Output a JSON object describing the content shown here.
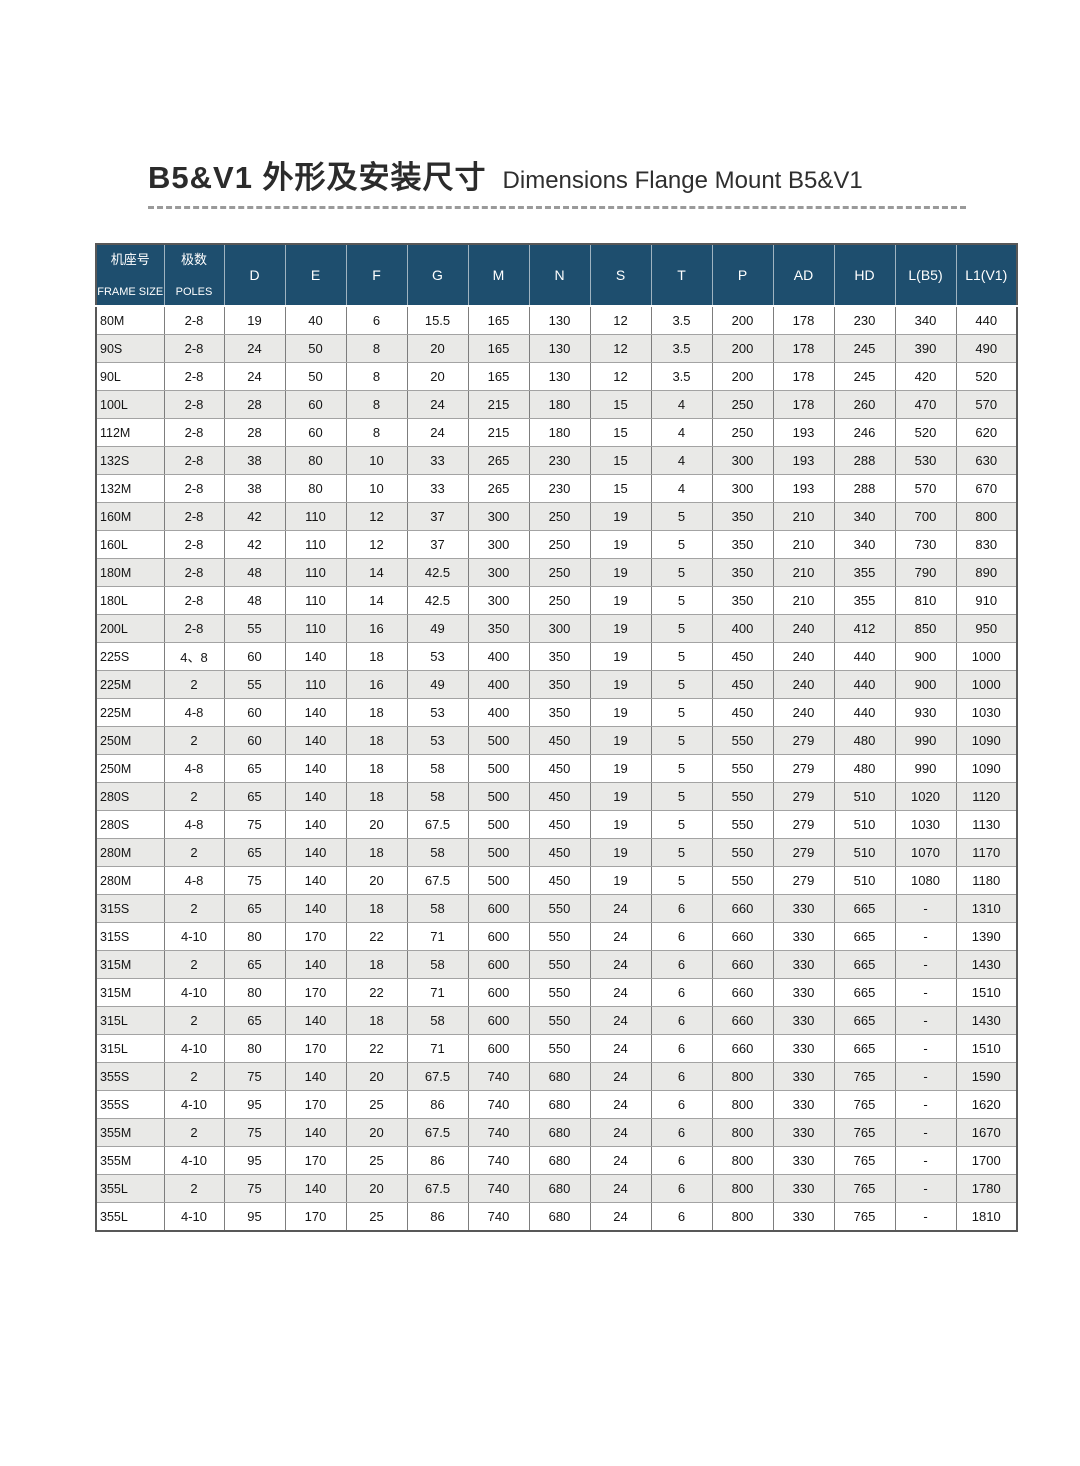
{
  "page": {
    "title_zh": "B5&V1 外形及安装尺寸",
    "title_en": "Dimensions Flange Mount B5&V1"
  },
  "colors": {
    "header_bg": "#1e4e6e",
    "header_text": "#ffffff",
    "stripe": "#e9e9e7"
  },
  "table": {
    "frame_header": {
      "zh": "机座号",
      "en": "FRAME SIZE"
    },
    "poles_header": {
      "zh": "极数",
      "en": "POLES"
    },
    "dim_headers": [
      "D",
      "E",
      "F",
      "G",
      "M",
      "N",
      "S",
      "T",
      "P",
      "AD",
      "HD",
      "L(B5)",
      "L1(V1)"
    ],
    "rows": [
      [
        "80M",
        "2-8",
        "19",
        "40",
        "6",
        "15.5",
        "165",
        "130",
        "12",
        "3.5",
        "200",
        "178",
        "230",
        "340",
        "440"
      ],
      [
        "90S",
        "2-8",
        "24",
        "50",
        "8",
        "20",
        "165",
        "130",
        "12",
        "3.5",
        "200",
        "178",
        "245",
        "390",
        "490"
      ],
      [
        "90L",
        "2-8",
        "24",
        "50",
        "8",
        "20",
        "165",
        "130",
        "12",
        "3.5",
        "200",
        "178",
        "245",
        "420",
        "520"
      ],
      [
        "100L",
        "2-8",
        "28",
        "60",
        "8",
        "24",
        "215",
        "180",
        "15",
        "4",
        "250",
        "178",
        "260",
        "470",
        "570"
      ],
      [
        "112M",
        "2-8",
        "28",
        "60",
        "8",
        "24",
        "215",
        "180",
        "15",
        "4",
        "250",
        "193",
        "246",
        "520",
        "620"
      ],
      [
        "132S",
        "2-8",
        "38",
        "80",
        "10",
        "33",
        "265",
        "230",
        "15",
        "4",
        "300",
        "193",
        "288",
        "530",
        "630"
      ],
      [
        "132M",
        "2-8",
        "38",
        "80",
        "10",
        "33",
        "265",
        "230",
        "15",
        "4",
        "300",
        "193",
        "288",
        "570",
        "670"
      ],
      [
        "160M",
        "2-8",
        "42",
        "110",
        "12",
        "37",
        "300",
        "250",
        "19",
        "5",
        "350",
        "210",
        "340",
        "700",
        "800"
      ],
      [
        "160L",
        "2-8",
        "42",
        "110",
        "12",
        "37",
        "300",
        "250",
        "19",
        "5",
        "350",
        "210",
        "340",
        "730",
        "830"
      ],
      [
        "180M",
        "2-8",
        "48",
        "110",
        "14",
        "42.5",
        "300",
        "250",
        "19",
        "5",
        "350",
        "210",
        "355",
        "790",
        "890"
      ],
      [
        "180L",
        "2-8",
        "48",
        "110",
        "14",
        "42.5",
        "300",
        "250",
        "19",
        "5",
        "350",
        "210",
        "355",
        "810",
        "910"
      ],
      [
        "200L",
        "2-8",
        "55",
        "110",
        "16",
        "49",
        "350",
        "300",
        "19",
        "5",
        "400",
        "240",
        "412",
        "850",
        "950"
      ],
      [
        "225S",
        "4、8",
        "60",
        "140",
        "18",
        "53",
        "400",
        "350",
        "19",
        "5",
        "450",
        "240",
        "440",
        "900",
        "1000"
      ],
      [
        "225M",
        "2",
        "55",
        "110",
        "16",
        "49",
        "400",
        "350",
        "19",
        "5",
        "450",
        "240",
        "440",
        "900",
        "1000"
      ],
      [
        "225M",
        "4-8",
        "60",
        "140",
        "18",
        "53",
        "400",
        "350",
        "19",
        "5",
        "450",
        "240",
        "440",
        "930",
        "1030"
      ],
      [
        "250M",
        "2",
        "60",
        "140",
        "18",
        "53",
        "500",
        "450",
        "19",
        "5",
        "550",
        "279",
        "480",
        "990",
        "1090"
      ],
      [
        "250M",
        "4-8",
        "65",
        "140",
        "18",
        "58",
        "500",
        "450",
        "19",
        "5",
        "550",
        "279",
        "480",
        "990",
        "1090"
      ],
      [
        "280S",
        "2",
        "65",
        "140",
        "18",
        "58",
        "500",
        "450",
        "19",
        "5",
        "550",
        "279",
        "510",
        "1020",
        "1120"
      ],
      [
        "280S",
        "4-8",
        "75",
        "140",
        "20",
        "67.5",
        "500",
        "450",
        "19",
        "5",
        "550",
        "279",
        "510",
        "1030",
        "1130"
      ],
      [
        "280M",
        "2",
        "65",
        "140",
        "18",
        "58",
        "500",
        "450",
        "19",
        "5",
        "550",
        "279",
        "510",
        "1070",
        "1170"
      ],
      [
        "280M",
        "4-8",
        "75",
        "140",
        "20",
        "67.5",
        "500",
        "450",
        "19",
        "5",
        "550",
        "279",
        "510",
        "1080",
        "1180"
      ],
      [
        "315S",
        "2",
        "65",
        "140",
        "18",
        "58",
        "600",
        "550",
        "24",
        "6",
        "660",
        "330",
        "665",
        "-",
        "1310"
      ],
      [
        "315S",
        "4-10",
        "80",
        "170",
        "22",
        "71",
        "600",
        "550",
        "24",
        "6",
        "660",
        "330",
        "665",
        "-",
        "1390"
      ],
      [
        "315M",
        "2",
        "65",
        "140",
        "18",
        "58",
        "600",
        "550",
        "24",
        "6",
        "660",
        "330",
        "665",
        "-",
        "1430"
      ],
      [
        "315M",
        "4-10",
        "80",
        "170",
        "22",
        "71",
        "600",
        "550",
        "24",
        "6",
        "660",
        "330",
        "665",
        "-",
        "1510"
      ],
      [
        "315L",
        "2",
        "65",
        "140",
        "18",
        "58",
        "600",
        "550",
        "24",
        "6",
        "660",
        "330",
        "665",
        "-",
        "1430"
      ],
      [
        "315L",
        "4-10",
        "80",
        "170",
        "22",
        "71",
        "600",
        "550",
        "24",
        "6",
        "660",
        "330",
        "665",
        "-",
        "1510"
      ],
      [
        "355S",
        "2",
        "75",
        "140",
        "20",
        "67.5",
        "740",
        "680",
        "24",
        "6",
        "800",
        "330",
        "765",
        "-",
        "1590"
      ],
      [
        "355S",
        "4-10",
        "95",
        "170",
        "25",
        "86",
        "740",
        "680",
        "24",
        "6",
        "800",
        "330",
        "765",
        "-",
        "1620"
      ],
      [
        "355M",
        "2",
        "75",
        "140",
        "20",
        "67.5",
        "740",
        "680",
        "24",
        "6",
        "800",
        "330",
        "765",
        "-",
        "1670"
      ],
      [
        "355M",
        "4-10",
        "95",
        "170",
        "25",
        "86",
        "740",
        "680",
        "24",
        "6",
        "800",
        "330",
        "765",
        "-",
        "1700"
      ],
      [
        "355L",
        "2",
        "75",
        "140",
        "20",
        "67.5",
        "740",
        "680",
        "24",
        "6",
        "800",
        "330",
        "765",
        "-",
        "1780"
      ],
      [
        "355L",
        "4-10",
        "95",
        "170",
        "25",
        "86",
        "740",
        "680",
        "24",
        "6",
        "800",
        "330",
        "765",
        "-",
        "1810"
      ]
    ]
  }
}
